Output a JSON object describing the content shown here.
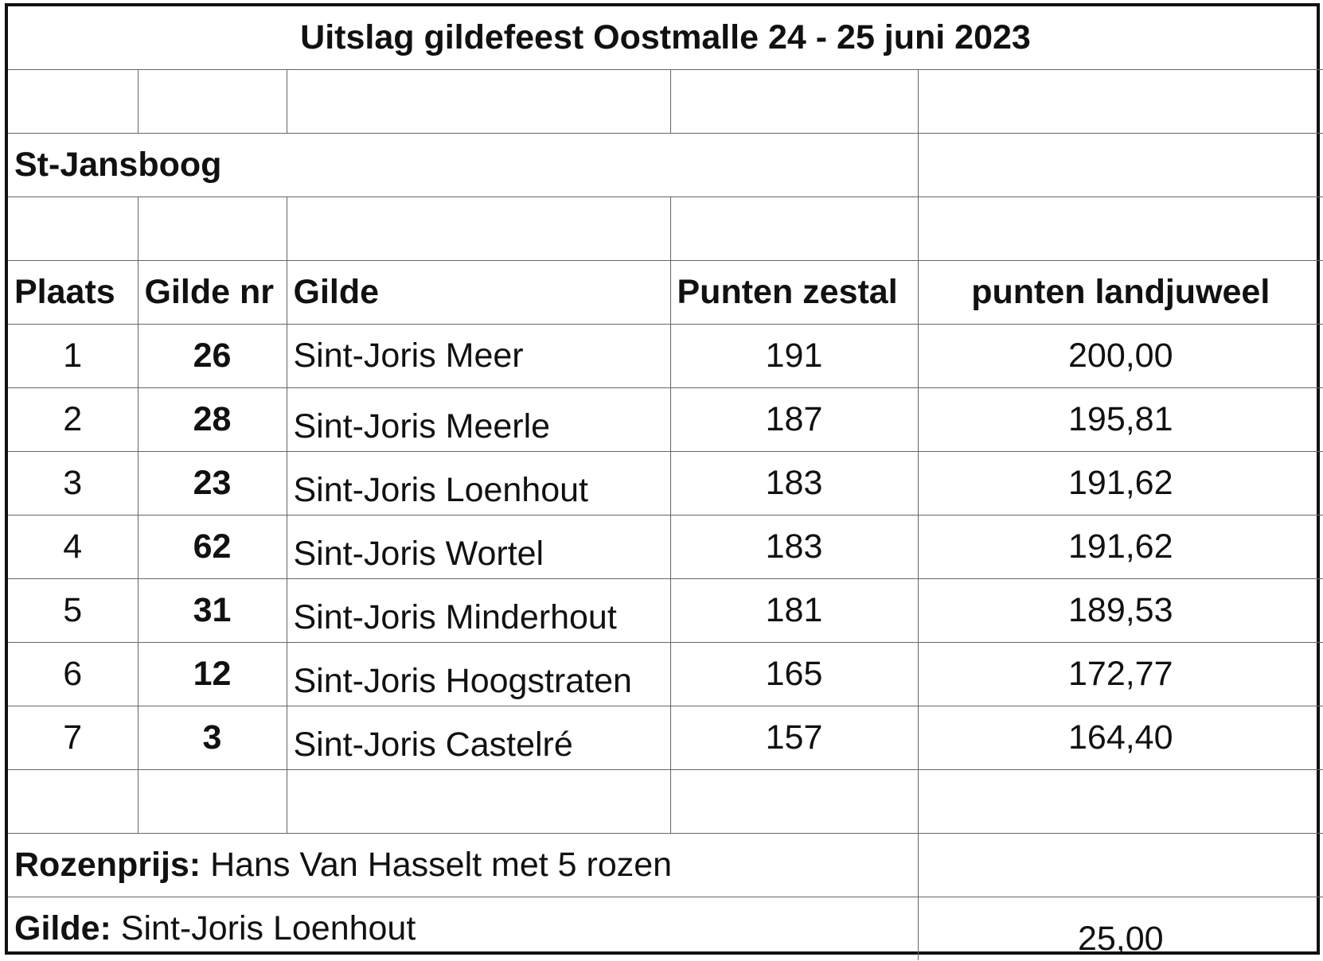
{
  "title": "Uitslag gildefeest Oostmalle 24 - 25 juni 2023",
  "section": "St-Jansboog",
  "headers": {
    "plaats": "Plaats",
    "gilde_nr": "Gilde nr",
    "gilde": "Gilde",
    "punten_zestal": "Punten zestal",
    "punten_landjuweel": "punten landjuweel"
  },
  "rows": [
    {
      "plaats": "1",
      "gilde_nr": "26",
      "gilde": "Sint-Joris Meer",
      "zestal": "191",
      "landjuweel": "200,00"
    },
    {
      "plaats": "2",
      "gilde_nr": "28",
      "gilde": "Sint-Joris Meerle",
      "zestal": "187",
      "landjuweel": "195,81"
    },
    {
      "plaats": "3",
      "gilde_nr": "23",
      "gilde": "Sint-Joris Loenhout",
      "zestal": "183",
      "landjuweel": "191,62"
    },
    {
      "plaats": "4",
      "gilde_nr": "62",
      "gilde": "Sint-Joris Wortel",
      "zestal": "183",
      "landjuweel": "191,62"
    },
    {
      "plaats": "5",
      "gilde_nr": "31",
      "gilde": "Sint-Joris Minderhout",
      "zestal": "181",
      "landjuweel": "189,53"
    },
    {
      "plaats": "6",
      "gilde_nr": "12",
      "gilde": "Sint-Joris Hoogstraten",
      "zestal": "165",
      "landjuweel": "172,77"
    },
    {
      "plaats": "7",
      "gilde_nr": "3",
      "gilde": "Sint-Joris Castelré",
      "zestal": "157",
      "landjuweel": "164,40"
    }
  ],
  "rozenprijs": {
    "label": "Rozenprijs:",
    "value": "Hans Van Hasselt met 5 rozen"
  },
  "gilde_prize": {
    "label": "Gilde:",
    "value": "Sint-Joris Loenhout",
    "points": "25,00"
  }
}
